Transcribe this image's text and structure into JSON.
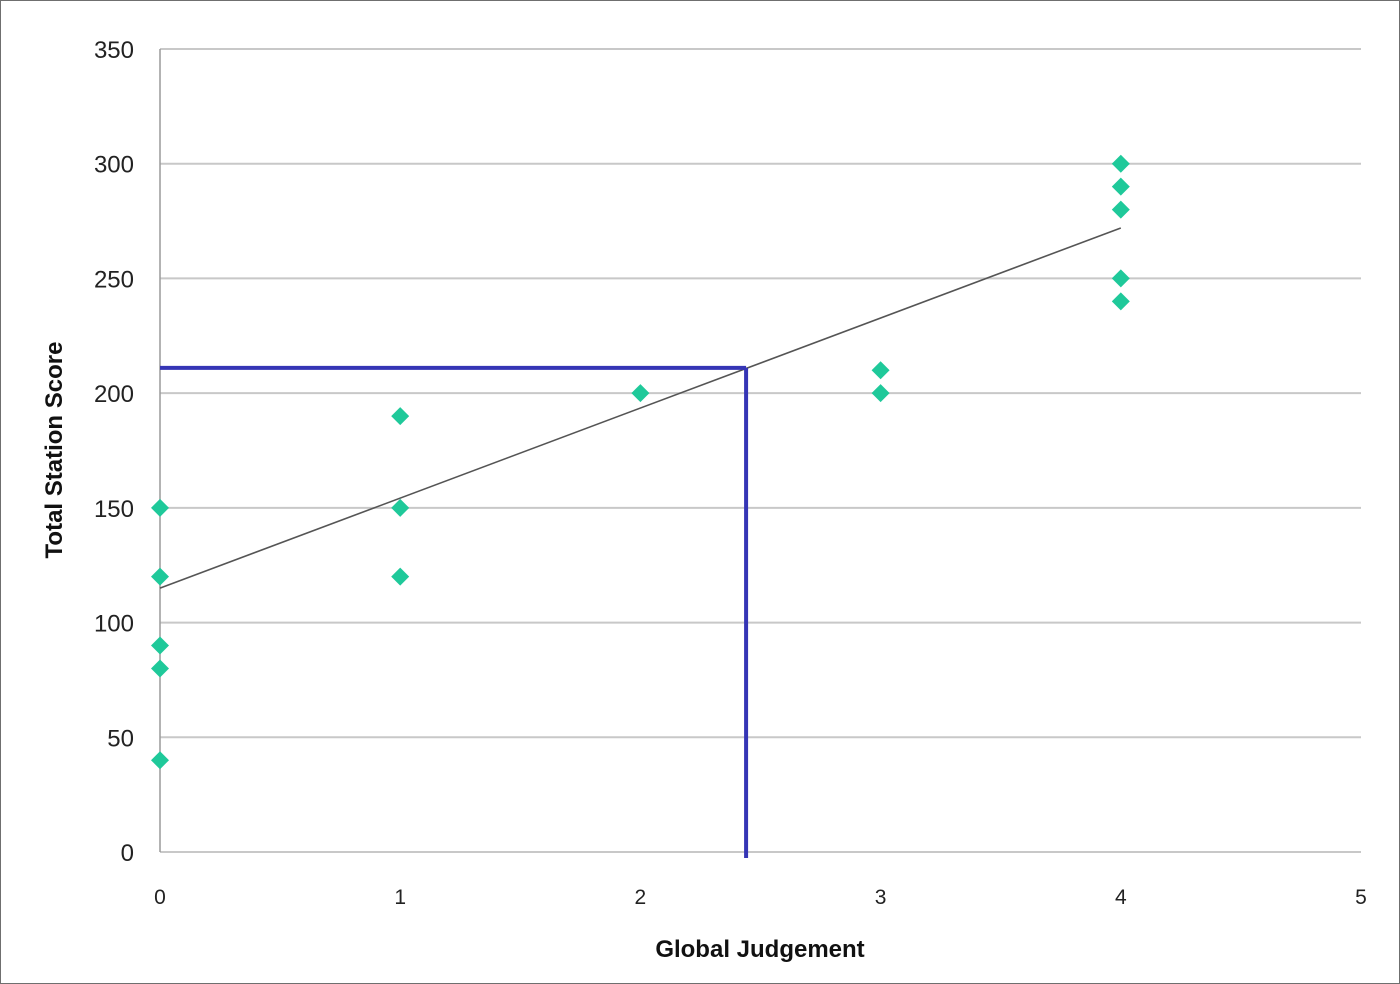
{
  "chart_data": {
    "type": "scatter",
    "xlabel": "Global Judgement",
    "ylabel": "Total Station Score",
    "xlim": [
      0,
      5
    ],
    "ylim": [
      0,
      350
    ],
    "x_ticks": [
      "0",
      "1",
      "2",
      "3",
      "4",
      "5"
    ],
    "y_ticks": [
      "0",
      "50",
      "100",
      "150",
      "200",
      "250",
      "300",
      "350"
    ],
    "grid": "horizontal",
    "legend": "none",
    "series": [
      {
        "color": "#1fc99a",
        "marker": "diamond",
        "points": [
          {
            "x": 0,
            "y": 150
          },
          {
            "x": 0,
            "y": 120
          },
          {
            "x": 0,
            "y": 90
          },
          {
            "x": 0,
            "y": 80
          },
          {
            "x": 0,
            "y": 40
          },
          {
            "x": 1,
            "y": 190
          },
          {
            "x": 1,
            "y": 150
          },
          {
            "x": 1,
            "y": 120
          },
          {
            "x": 2,
            "y": 200
          },
          {
            "x": 3,
            "y": 210
          },
          {
            "x": 3,
            "y": 200
          },
          {
            "x": 4,
            "y": 300
          },
          {
            "x": 4,
            "y": 290
          },
          {
            "x": 4,
            "y": 280
          },
          {
            "x": 4,
            "y": 250
          },
          {
            "x": 4,
            "y": 240
          }
        ]
      }
    ],
    "trendline": {
      "color": "#555555",
      "x": [
        0,
        4
      ],
      "y": [
        115,
        272
      ]
    },
    "cut_score": {
      "color": "#3535b5",
      "x": 2.44,
      "y": 211
    }
  }
}
